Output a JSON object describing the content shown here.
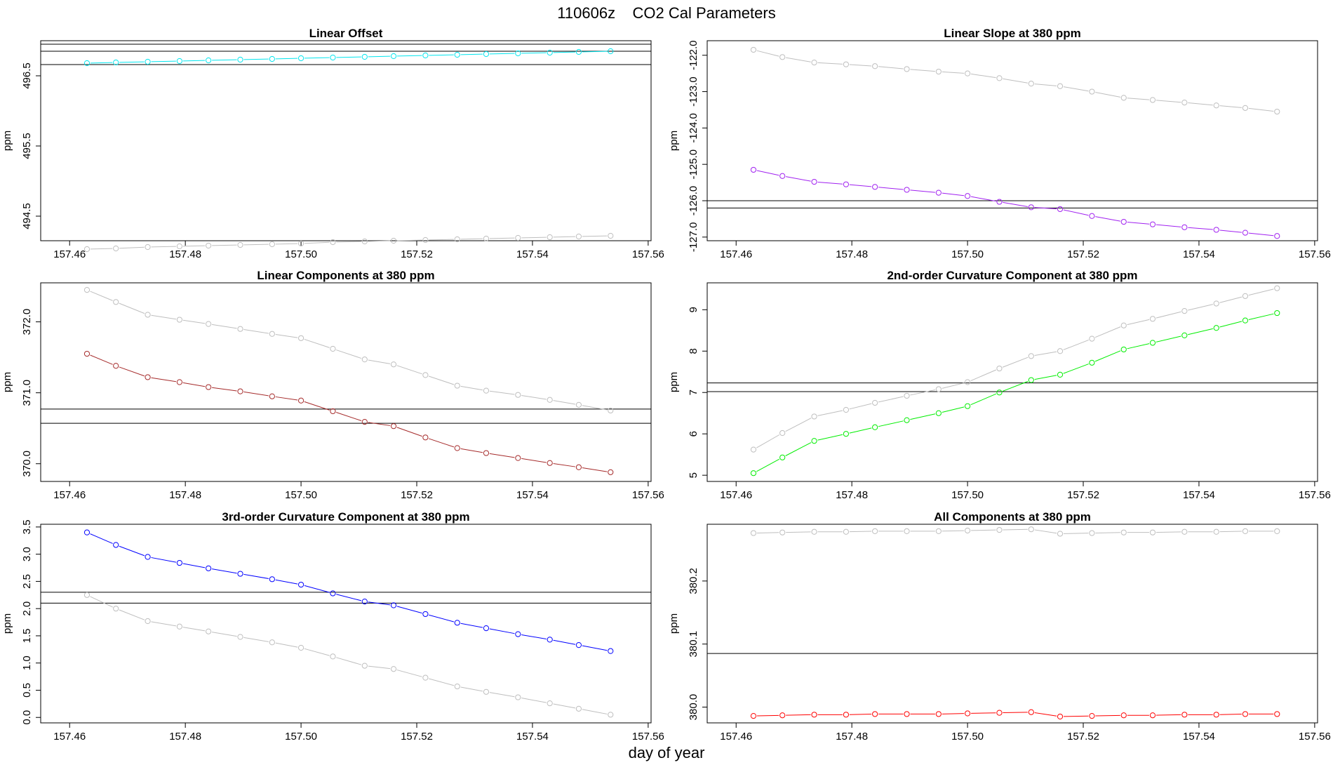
{
  "figure": {
    "title": "110606z    CO2 Cal Parameters",
    "xlabel": "day of year"
  },
  "chart_data": [
    {
      "type": "line",
      "title": "Linear Offset",
      "ylabel": "ppm",
      "xlim": [
        157.455,
        157.5605
      ],
      "ylim": [
        494.15,
        497.0
      ],
      "xticks": [
        157.46,
        157.48,
        157.5,
        157.52,
        157.54,
        157.56
      ],
      "yticks": [
        494.5,
        495.5,
        496.5
      ],
      "x": [
        157.463,
        157.468,
        157.4735,
        157.479,
        157.484,
        157.4895,
        157.495,
        157.5,
        157.5055,
        157.511,
        157.516,
        157.5215,
        157.527,
        157.532,
        157.5375,
        157.543,
        157.548,
        157.5535
      ],
      "hlines": [
        496.95,
        496.85,
        496.66
      ],
      "series": [
        {
          "color": "#bebebe",
          "values": [
            494.03,
            494.04,
            494.06,
            494.07,
            494.08,
            494.09,
            494.1,
            494.11,
            494.13,
            494.14,
            494.15,
            494.16,
            494.17,
            494.18,
            494.19,
            494.2,
            494.21,
            494.22
          ]
        },
        {
          "color": "#00e5ee",
          "values": [
            496.68,
            496.69,
            496.7,
            496.71,
            496.72,
            496.73,
            496.74,
            496.75,
            496.76,
            496.77,
            496.78,
            496.79,
            496.8,
            496.81,
            496.82,
            496.83,
            496.84,
            496.85
          ]
        }
      ]
    },
    {
      "type": "line",
      "title": "Linear Slope at 380 ppm",
      "ylabel": "ppm",
      "xlim": [
        157.455,
        157.5605
      ],
      "ylim": [
        -127.1,
        -121.6
      ],
      "xticks": [
        157.46,
        157.48,
        157.5,
        157.52,
        157.54,
        157.56
      ],
      "yticks": [
        -127,
        -126,
        -125,
        -124,
        -123,
        -122
      ],
      "x": [
        157.463,
        157.468,
        157.4735,
        157.479,
        157.484,
        157.4895,
        157.495,
        157.5,
        157.5055,
        157.511,
        157.516,
        157.5215,
        157.527,
        157.532,
        157.5375,
        157.543,
        157.548,
        157.5535
      ],
      "hlines": [
        -126.0,
        -126.2
      ],
      "series": [
        {
          "color": "#bebebe",
          "values": [
            -121.85,
            -122.05,
            -122.2,
            -122.25,
            -122.3,
            -122.38,
            -122.45,
            -122.5,
            -122.63,
            -122.78,
            -122.85,
            -123.0,
            -123.17,
            -123.23,
            -123.3,
            -123.38,
            -123.45,
            -123.55
          ]
        },
        {
          "color": "#a020f0",
          "values": [
            -125.15,
            -125.32,
            -125.48,
            -125.55,
            -125.62,
            -125.7,
            -125.78,
            -125.87,
            -126.03,
            -126.18,
            -126.23,
            -126.42,
            -126.58,
            -126.65,
            -126.73,
            -126.8,
            -126.88,
            -126.97
          ]
        }
      ]
    },
    {
      "type": "line",
      "title": "Linear Components at 380 ppm",
      "ylabel": "ppm",
      "xlim": [
        157.455,
        157.5605
      ],
      "ylim": [
        369.75,
        372.55
      ],
      "xticks": [
        157.46,
        157.48,
        157.5,
        157.52,
        157.54,
        157.56
      ],
      "yticks": [
        370.0,
        371.0,
        372.0
      ],
      "x": [
        157.463,
        157.468,
        157.4735,
        157.479,
        157.484,
        157.4895,
        157.495,
        157.5,
        157.5055,
        157.511,
        157.516,
        157.5215,
        157.527,
        157.532,
        157.5375,
        157.543,
        157.548,
        157.5535
      ],
      "hlines": [
        370.77,
        370.57
      ],
      "series": [
        {
          "color": "#bebebe",
          "values": [
            372.45,
            372.28,
            372.1,
            372.03,
            371.97,
            371.9,
            371.83,
            371.77,
            371.62,
            371.47,
            371.4,
            371.25,
            371.1,
            371.03,
            370.97,
            370.9,
            370.83,
            370.75
          ]
        },
        {
          "color": "#a52a2a",
          "values": [
            371.55,
            371.38,
            371.22,
            371.15,
            371.08,
            371.02,
            370.95,
            370.89,
            370.74,
            370.59,
            370.53,
            370.37,
            370.22,
            370.15,
            370.08,
            370.01,
            369.95,
            369.88
          ]
        }
      ]
    },
    {
      "type": "line",
      "title": "2nd-order Curvature Component at 380 ppm",
      "ylabel": "ppm",
      "xlim": [
        157.455,
        157.5605
      ],
      "ylim": [
        4.85,
        9.65
      ],
      "xticks": [
        157.46,
        157.48,
        157.5,
        157.52,
        157.54,
        157.56
      ],
      "yticks": [
        5,
        6,
        7,
        8,
        9
      ],
      "x": [
        157.463,
        157.468,
        157.4735,
        157.479,
        157.484,
        157.4895,
        157.495,
        157.5,
        157.5055,
        157.511,
        157.516,
        157.5215,
        157.527,
        157.532,
        157.5375,
        157.543,
        157.548,
        157.5535
      ],
      "hlines": [
        7.23,
        7.02
      ],
      "series": [
        {
          "color": "#bebebe",
          "values": [
            5.62,
            6.02,
            6.42,
            6.58,
            6.75,
            6.92,
            7.08,
            7.25,
            7.58,
            7.88,
            8.0,
            8.3,
            8.62,
            8.78,
            8.97,
            9.15,
            9.33,
            9.52
          ]
        },
        {
          "color": "#00ee00",
          "values": [
            5.05,
            5.43,
            5.83,
            6.0,
            6.16,
            6.33,
            6.5,
            6.67,
            7.0,
            7.3,
            7.43,
            7.72,
            8.04,
            8.2,
            8.38,
            8.56,
            8.74,
            8.92
          ]
        }
      ]
    },
    {
      "type": "line",
      "title": "3rd-order Curvature Component at 380 ppm",
      "ylabel": "ppm",
      "xlim": [
        157.455,
        157.5605
      ],
      "ylim": [
        -0.1,
        3.55
      ],
      "xticks": [
        157.46,
        157.48,
        157.5,
        157.52,
        157.54,
        157.56
      ],
      "yticks": [
        0.0,
        0.5,
        1.0,
        1.5,
        2.0,
        2.5,
        3.0,
        3.5
      ],
      "x": [
        157.463,
        157.468,
        157.4735,
        157.479,
        157.484,
        157.4895,
        157.495,
        157.5,
        157.5055,
        157.511,
        157.516,
        157.5215,
        157.527,
        157.532,
        157.5375,
        157.543,
        157.548,
        157.5535
      ],
      "hlines": [
        2.3,
        2.1
      ],
      "series": [
        {
          "color": "#bebebe",
          "values": [
            2.25,
            2.0,
            1.77,
            1.67,
            1.58,
            1.48,
            1.38,
            1.28,
            1.12,
            0.95,
            0.89,
            0.73,
            0.57,
            0.47,
            0.37,
            0.26,
            0.16,
            0.05
          ]
        },
        {
          "color": "#0000ff",
          "values": [
            3.4,
            3.17,
            2.95,
            2.84,
            2.74,
            2.64,
            2.54,
            2.44,
            2.28,
            2.13,
            2.06,
            1.9,
            1.74,
            1.64,
            1.53,
            1.43,
            1.33,
            1.22
          ]
        }
      ]
    },
    {
      "type": "line",
      "title": "All Components at 380 ppm",
      "ylabel": "ppm",
      "xlim": [
        157.455,
        157.5605
      ],
      "ylim": [
        379.975,
        380.29
      ],
      "xticks": [
        157.46,
        157.48,
        157.5,
        157.52,
        157.54,
        157.56
      ],
      "yticks": [
        380.0,
        380.1,
        380.2
      ],
      "x": [
        157.463,
        157.468,
        157.4735,
        157.479,
        157.484,
        157.4895,
        157.495,
        157.5,
        157.5055,
        157.511,
        157.516,
        157.5215,
        157.527,
        157.532,
        157.5375,
        157.543,
        157.548,
        157.5535
      ],
      "hlines": [
        380.085
      ],
      "series": [
        {
          "color": "#bebebe",
          "values": [
            380.276,
            380.277,
            380.278,
            380.278,
            380.279,
            380.279,
            380.279,
            380.28,
            380.281,
            380.282,
            380.275,
            380.276,
            380.277,
            380.277,
            380.278,
            380.278,
            380.279,
            380.279
          ]
        },
        {
          "color": "#ff0000",
          "values": [
            379.986,
            379.987,
            379.988,
            379.988,
            379.989,
            379.989,
            379.989,
            379.99,
            379.991,
            379.992,
            379.985,
            379.986,
            379.987,
            379.987,
            379.988,
            379.988,
            379.989,
            379.989
          ]
        }
      ]
    }
  ]
}
